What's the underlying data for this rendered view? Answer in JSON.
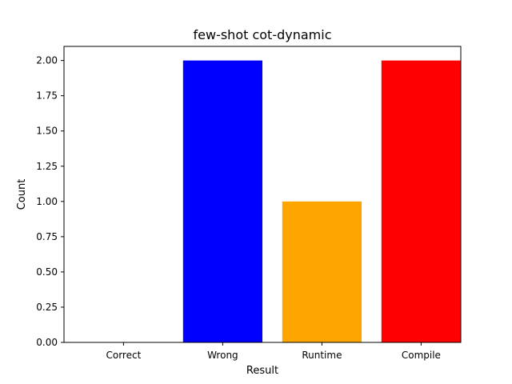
{
  "chart_data": {
    "type": "bar",
    "title": "few-shot cot-dynamic",
    "xlabel": "Result",
    "ylabel": "Count",
    "categories": [
      "Correct",
      "Wrong",
      "Runtime",
      "Compile"
    ],
    "values": [
      0,
      2,
      1,
      2
    ],
    "colors": [
      "#008000",
      "#0000ff",
      "#ffa500",
      "#ff0000"
    ],
    "ylim": [
      0,
      2.1
    ],
    "yticks": [
      "0.00",
      "0.25",
      "0.50",
      "0.75",
      "1.00",
      "1.25",
      "1.50",
      "1.75",
      "2.00"
    ],
    "grid": false,
    "legend": "none"
  }
}
